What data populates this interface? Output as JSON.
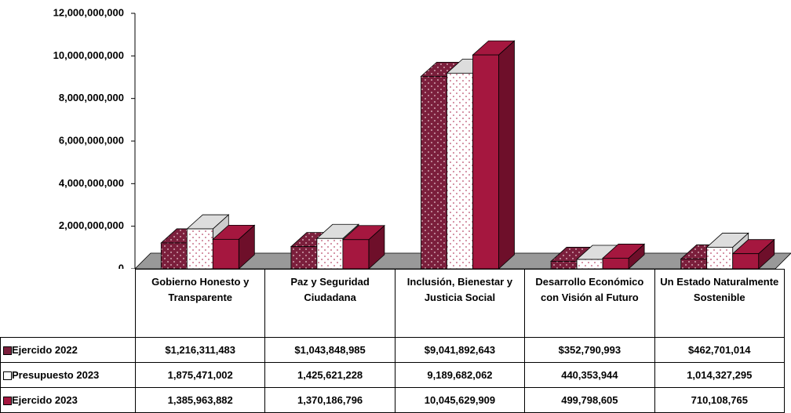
{
  "chart_data": {
    "type": "bar3d",
    "categories": [
      "Gobierno Honesto y Transparente",
      "Paz y Seguridad Ciudadana",
      "Inclusión, Bienestar y Justicia Social",
      "Desarrollo Económico con Visión al Futuro",
      "Un Estado Naturalmente Sostenible"
    ],
    "series": [
      {
        "name": "Ejercido 2022",
        "color": "#7b1f3c",
        "values": [
          1216311483,
          1043848985,
          9041892643,
          352790993,
          462701014
        ],
        "value_labels": [
          "$1,216,311,483",
          "$1,043,848,985",
          "$9,041,892,643",
          "$352,790,993",
          "$462,701,014"
        ]
      },
      {
        "name": "Presupuesto 2023",
        "color": "#ffffff",
        "values": [
          1875471002,
          1425621228,
          9189682062,
          440353944,
          1014327295
        ],
        "value_labels": [
          "1,875,471,002",
          "1,425,621,228",
          "9,189,682,062",
          "440,353,944",
          "1,014,327,295"
        ]
      },
      {
        "name": "Ejercido 2023",
        "color": "#a5173f",
        "values": [
          1385963882,
          1370186796,
          10045629909,
          499798605,
          710108765
        ],
        "value_labels": [
          "1,385,963,882",
          "1,370,186,796",
          "10,045,629,909",
          "499,798,605",
          "710,108,765"
        ]
      }
    ],
    "ylim": [
      0,
      12000000000
    ],
    "yticks": [
      0,
      {
        "value": 2000000000,
        "label": "2,000,000,000"
      },
      {
        "value": 4000000000,
        "label": "4,000,000,000"
      },
      {
        "value": 6000000000,
        "label": "6,000,000,000"
      },
      {
        "value": 8000000000,
        "label": "8,000,000,000"
      },
      {
        "value": 10000000000,
        "label": "10,000,000,000"
      },
      {
        "value": 12000000000,
        "label": "12,000,000,000"
      }
    ]
  }
}
